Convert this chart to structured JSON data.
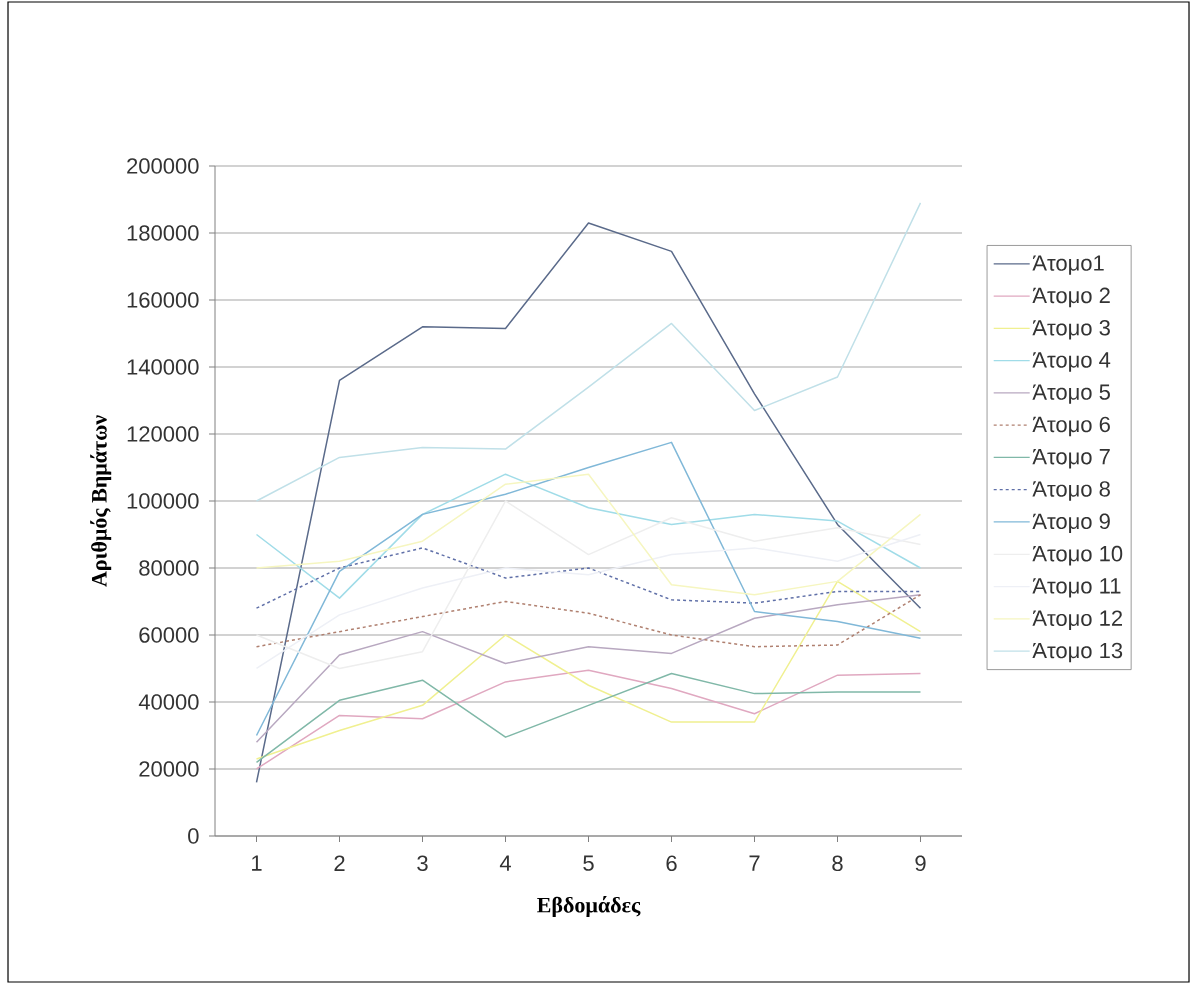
{
  "chart_data": {
    "type": "line",
    "xlabel": "Εβδομάδες",
    "ylabel": "Αριθμός Βημάτων",
    "categories": [
      "1",
      "2",
      "3",
      "4",
      "5",
      "6",
      "7",
      "8",
      "9"
    ],
    "ylim": [
      0,
      200000
    ],
    "yticks": [
      0,
      20000,
      40000,
      60000,
      80000,
      100000,
      120000,
      140000,
      160000,
      180000,
      200000
    ],
    "grid": "y",
    "legend": "right",
    "marker": "none",
    "series": [
      {
        "name": "Άτομο1",
        "color": "#5a6a8a",
        "values": [
          16000,
          136000,
          152000,
          151500,
          183000,
          174500,
          132000,
          93000,
          68000
        ]
      },
      {
        "name": "Άτομο 2",
        "color": "#e0a8c0",
        "values": [
          20000,
          36000,
          35000,
          46000,
          49500,
          44000,
          36500,
          48000,
          48500
        ]
      },
      {
        "name": "Άτομο 3",
        "color": "#f0f090",
        "values": [
          23000,
          31500,
          39000,
          60000,
          45000,
          34000,
          34000,
          76000,
          61000
        ]
      },
      {
        "name": "Άτομο 4",
        "color": "#a0dce8",
        "values": [
          90000,
          71000,
          96000,
          108000,
          98000,
          93000,
          96000,
          94000,
          80000
        ]
      },
      {
        "name": "Άτομο 5",
        "color": "#b8a8c0",
        "values": [
          28000,
          54000,
          61000,
          51500,
          56500,
          54500,
          65000,
          69000,
          72000
        ]
      },
      {
        "name": "Άτομο 6",
        "color": "#b08070",
        "line_style": "dashed",
        "values": [
          56500,
          61000,
          65500,
          70000,
          66500,
          60000,
          56500,
          57000,
          72000
        ]
      },
      {
        "name": "Άτομο 7",
        "color": "#80b8a8",
        "values": [
          22000,
          40500,
          46500,
          29500,
          39000,
          48500,
          42500,
          43000,
          43000
        ]
      },
      {
        "name": "Άτομο 8",
        "color": "#6070a8",
        "line_style": "dashed",
        "values": [
          68000,
          80000,
          86000,
          77000,
          80000,
          70500,
          69500,
          73000,
          73000
        ]
      },
      {
        "name": "Άτομο 9",
        "color": "#80b8d8",
        "values": [
          30000,
          79000,
          96000,
          102000,
          110000,
          117500,
          67000,
          64000,
          59000
        ]
      },
      {
        "name": "Άτομο 10",
        "color": "#eeeeee",
        "values": [
          60000,
          50000,
          55000,
          100000,
          84000,
          95000,
          88000,
          92000,
          87000
        ]
      },
      {
        "name": "Άτομο 11",
        "color": "#eef0f6",
        "values": [
          50000,
          66000,
          74000,
          80000,
          78000,
          84000,
          86000,
          82000,
          90000
        ]
      },
      {
        "name": "Άτομο 12",
        "color": "#f6f6c0",
        "values": [
          80000,
          82000,
          88000,
          105000,
          108000,
          75000,
          72000,
          76000,
          96000
        ]
      },
      {
        "name": "Άτομο 13",
        "color": "#c0e0e8",
        "values": [
          100000,
          113000,
          116000,
          115500,
          134000,
          153000,
          127000,
          137000,
          189000
        ]
      }
    ]
  }
}
